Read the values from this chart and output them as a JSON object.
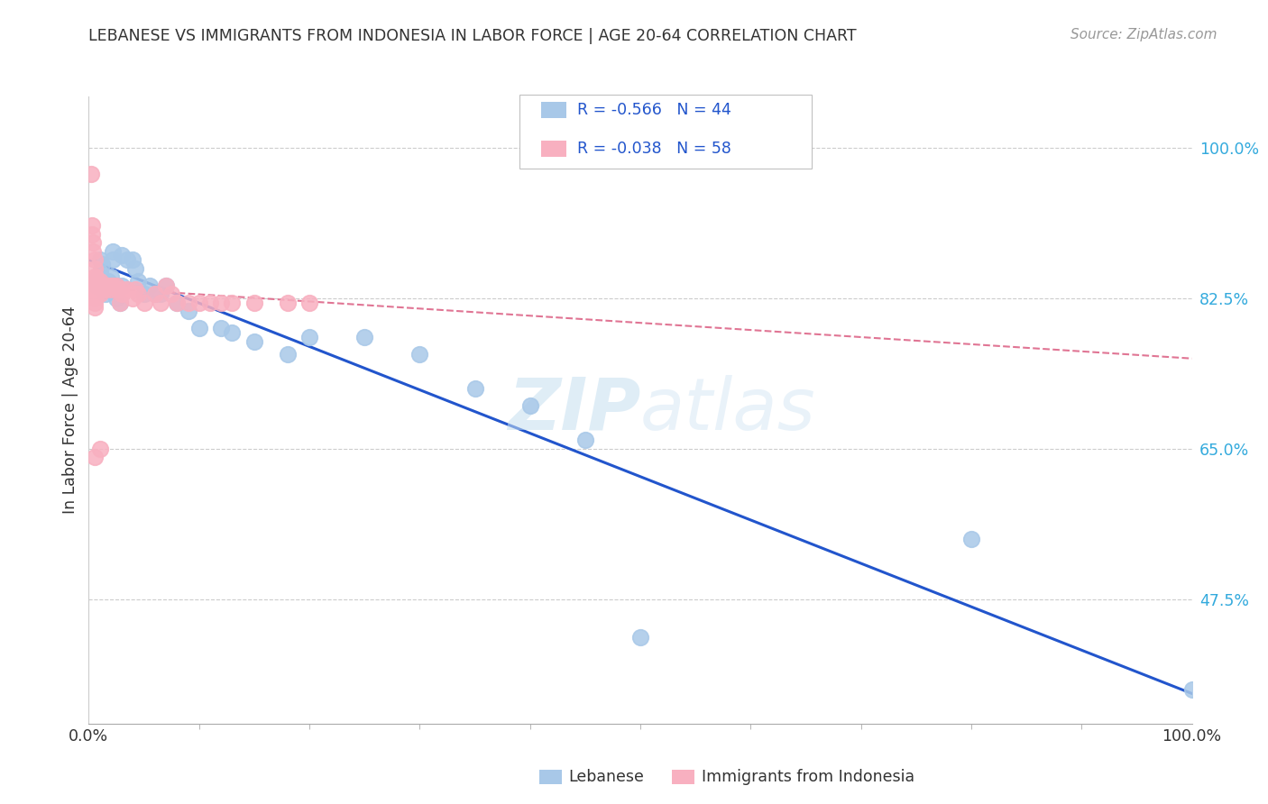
{
  "title": "LEBANESE VS IMMIGRANTS FROM INDONESIA IN LABOR FORCE | AGE 20-64 CORRELATION CHART",
  "source": "Source: ZipAtlas.com",
  "ylabel": "In Labor Force | Age 20-64",
  "yticks": [
    0.475,
    0.65,
    0.825,
    1.0
  ],
  "ytick_labels": [
    "47.5%",
    "65.0%",
    "82.5%",
    "100.0%"
  ],
  "xmin": 0.0,
  "xmax": 1.0,
  "ymin": 0.33,
  "ymax": 1.06,
  "legend_r1": "-0.566",
  "legend_n1": "44",
  "legend_r2": "-0.038",
  "legend_n2": "58",
  "legend_label1": "Lebanese",
  "legend_label2": "Immigrants from Indonesia",
  "blue_color": "#a8c8e8",
  "pink_color": "#f8b0c0",
  "trendline_blue": "#2255cc",
  "trendline_pink": "#dd6688",
  "watermark_zip": "ZIP",
  "watermark_atlas": "atlas",
  "blue_x": [
    0.005,
    0.008,
    0.01,
    0.01,
    0.012,
    0.015,
    0.015,
    0.018,
    0.018,
    0.02,
    0.02,
    0.02,
    0.022,
    0.022,
    0.025,
    0.025,
    0.028,
    0.03,
    0.03,
    0.035,
    0.04,
    0.042,
    0.045,
    0.05,
    0.055,
    0.06,
    0.065,
    0.07,
    0.08,
    0.09,
    0.1,
    0.12,
    0.13,
    0.15,
    0.18,
    0.2,
    0.25,
    0.3,
    0.35,
    0.4,
    0.45,
    0.8,
    0.5,
    1.0
  ],
  "blue_y": [
    0.845,
    0.84,
    0.87,
    0.855,
    0.865,
    0.84,
    0.83,
    0.845,
    0.835,
    0.85,
    0.84,
    0.835,
    0.88,
    0.87,
    0.84,
    0.825,
    0.82,
    0.875,
    0.84,
    0.87,
    0.87,
    0.86,
    0.845,
    0.83,
    0.84,
    0.83,
    0.83,
    0.84,
    0.82,
    0.81,
    0.79,
    0.79,
    0.785,
    0.775,
    0.76,
    0.78,
    0.78,
    0.76,
    0.72,
    0.7,
    0.66,
    0.545,
    0.43,
    0.37
  ],
  "pink_x": [
    0.002,
    0.003,
    0.003,
    0.004,
    0.004,
    0.005,
    0.005,
    0.005,
    0.005,
    0.005,
    0.005,
    0.005,
    0.005,
    0.005,
    0.005,
    0.006,
    0.006,
    0.007,
    0.007,
    0.008,
    0.008,
    0.009,
    0.01,
    0.01,
    0.01,
    0.01,
    0.01,
    0.012,
    0.012,
    0.015,
    0.015,
    0.018,
    0.02,
    0.02,
    0.022,
    0.025,
    0.025,
    0.028,
    0.03,
    0.03,
    0.035,
    0.04,
    0.042,
    0.045,
    0.05,
    0.06,
    0.065,
    0.07,
    0.075,
    0.08,
    0.09,
    0.1,
    0.11,
    0.12,
    0.13,
    0.15,
    0.18,
    0.2
  ],
  "pink_y": [
    0.97,
    0.91,
    0.9,
    0.89,
    0.88,
    0.87,
    0.86,
    0.85,
    0.84,
    0.835,
    0.83,
    0.825,
    0.82,
    0.815,
    0.64,
    0.85,
    0.84,
    0.835,
    0.83,
    0.845,
    0.84,
    0.835,
    0.845,
    0.84,
    0.835,
    0.83,
    0.65,
    0.84,
    0.835,
    0.84,
    0.835,
    0.84,
    0.84,
    0.835,
    0.84,
    0.835,
    0.84,
    0.82,
    0.835,
    0.83,
    0.835,
    0.825,
    0.835,
    0.83,
    0.82,
    0.83,
    0.82,
    0.84,
    0.83,
    0.82,
    0.82,
    0.82,
    0.82,
    0.82,
    0.82,
    0.82,
    0.82,
    0.82
  ],
  "trendline_blue_x0": 0.0,
  "trendline_blue_y0": 0.87,
  "trendline_blue_x1": 1.0,
  "trendline_blue_y1": 0.365,
  "trendline_pink_x0": 0.0,
  "trendline_pink_y0": 0.838,
  "trendline_pink_x1": 1.0,
  "trendline_pink_y1": 0.755
}
